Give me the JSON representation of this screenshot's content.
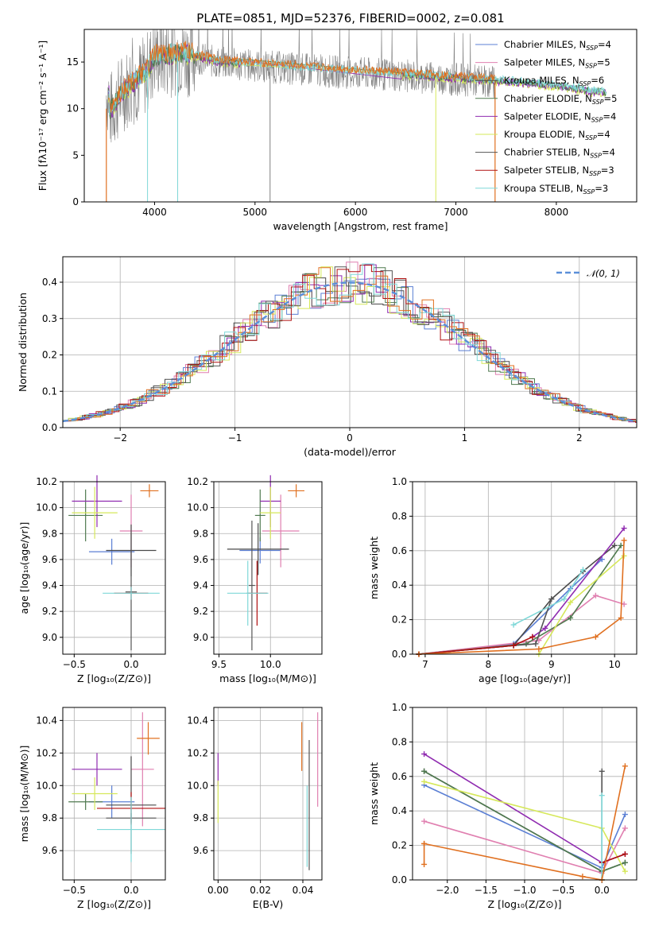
{
  "title": "PLATE=0851, MJD=52376, FIBERID=0002, z=0.081",
  "colors": {
    "Chabrier MILES": "#5b7fd4",
    "Salpeter MILES": "#e07fb0",
    "Kroupa MILES": "#4a4a4a",
    "Chabrier ELODIE": "#4f7a4f",
    "Salpeter ELODIE": "#8f2bb0",
    "Kroupa ELODIE": "#d6e85a",
    "Chabrier STELIB": "#555555",
    "Salpeter STELIB": "#b01010",
    "Kroupa STELIB": "#7fd8d8",
    "orange": "#e07020",
    "data": "#808080",
    "normal": "#5b8fd9"
  },
  "chart_data": [
    {
      "type": "line",
      "title": "PLATE=0851, MJD=52376, FIBERID=0002, z=0.081",
      "xlabel": "wavelength [Angstrom, rest frame]",
      "ylabel": "Flux [fλ10⁻¹⁷ erg cm⁻² s⁻¹ A⁻¹]",
      "xlim": [
        3300,
        8800
      ],
      "ylim": [
        0,
        18.5
      ],
      "xticks": [
        4000,
        5000,
        6000,
        7000,
        8000
      ],
      "yticks": [
        0,
        5,
        10,
        15
      ],
      "grid": false,
      "legend": "top-right",
      "legend_entries": [
        {
          "name": "Chabrier MILES",
          "nssp": "4"
        },
        {
          "name": "Salpeter MILES",
          "nssp": "5"
        },
        {
          "name": "Kroupa MILES",
          "nssp": "6"
        },
        {
          "name": "Chabrier ELODIE",
          "nssp": "5"
        },
        {
          "name": "Salpeter ELODIE",
          "nssp": "4"
        },
        {
          "name": "Kroupa ELODIE",
          "nssp": "4"
        },
        {
          "name": "Chabrier STELIB",
          "nssp": "4"
        },
        {
          "name": "Salpeter STELIB",
          "nssp": "3"
        },
        {
          "name": "Kroupa STELIB",
          "nssp": "3"
        }
      ],
      "legend_suffix": "N",
      "legend_sub": "SSP",
      "model_continuum": [
        [
          3550,
          9.5
        ],
        [
          3700,
          12.0
        ],
        [
          3900,
          13.5
        ],
        [
          4000,
          15.5
        ],
        [
          4300,
          15.8
        ],
        [
          4600,
          15.0
        ],
        [
          5000,
          14.6
        ],
        [
          5500,
          14.2
        ],
        [
          6000,
          13.8
        ],
        [
          6500,
          13.5
        ],
        [
          6800,
          13.3
        ],
        [
          7200,
          13.0
        ],
        [
          7600,
          12.7
        ],
        [
          8000,
          12.3
        ],
        [
          8500,
          11.5
        ]
      ],
      "data_range": [
        3520,
        7390
      ],
      "absorption_spikes": [
        3930,
        4230,
        5150,
        6800
      ]
    },
    {
      "type": "bar",
      "xlabel": "(data-model)/error",
      "ylabel": "Normed distribution",
      "xlim": [
        -2.5,
        2.5
      ],
      "ylim": [
        0,
        0.47
      ],
      "xticks": [
        -2,
        -1,
        0,
        1,
        2
      ],
      "yticks": [
        0.0,
        0.1,
        0.2,
        0.3,
        0.4
      ],
      "grid": true,
      "legend": "top-right",
      "normal_label": "𝒩(0, 1)",
      "bin_width": 0.1
    },
    {
      "type": "scatter",
      "xlabel": "Z [log₁₀(Z/Z⊙)]",
      "ylabel": "age  [log₁₀(age/yr)]",
      "xlim": [
        -0.6,
        0.3
      ],
      "ylim": [
        8.87,
        10.2
      ],
      "xticks": [
        -0.5,
        0.0
      ],
      "yticks": [
        9.0,
        9.2,
        9.4,
        9.6,
        9.8,
        10.0,
        10.2
      ],
      "points": [
        {
          "c": "Chabrier MILES",
          "x": -0.17,
          "xe": 0.2,
          "y": 9.66,
          "ye": 0.1
        },
        {
          "c": "Salpeter MILES",
          "x": 0.0,
          "xe": 0.1,
          "y": 9.82,
          "ye": 0.28
        },
        {
          "c": "Kroupa MILES",
          "x": 0.0,
          "xe": 0.22,
          "y": 9.67,
          "ye": 0.2
        },
        {
          "c": "Chabrier ELODIE",
          "x": -0.4,
          "xe": 0.15,
          "y": 9.94,
          "ye": 0.2
        },
        {
          "c": "Salpeter ELODIE",
          "x": -0.3,
          "xe": 0.22,
          "y": 10.05,
          "ye": 0.2
        },
        {
          "c": "Kroupa ELODIE",
          "x": -0.32,
          "xe": 0.2,
          "y": 9.96,
          "ye": 0.2
        },
        {
          "c": "Chabrier STELIB",
          "x": 0.0,
          "xe": 0.05,
          "y": 9.35,
          "ye": 0.45
        },
        {
          "c": "Salpeter STELIB",
          "x": 0.0,
          "xe": 0.15,
          "y": 9.34,
          "ye": 0.05
        },
        {
          "c": "Kroupa STELIB",
          "x": 0.0,
          "xe": 0.25,
          "y": 9.34,
          "ye": 0.05
        },
        {
          "c": "orange",
          "x": 0.16,
          "xe": 0.08,
          "y": 10.13,
          "ye": 0.05
        }
      ]
    },
    {
      "type": "scatter",
      "xlabel": "mass [log₁₀(M/M⊙)]",
      "xlim": [
        9.45,
        10.5
      ],
      "ylim": [
        8.87,
        10.2
      ],
      "xticks": [
        9.5,
        10.0
      ],
      "yticks": [
        9.0,
        9.2,
        9.4,
        9.6,
        9.8,
        10.0,
        10.2
      ],
      "points": [
        {
          "c": "Chabrier MILES",
          "x": 9.9,
          "xe": 0.2,
          "y": 9.67,
          "ye": 0.1
        },
        {
          "c": "Salpeter MILES",
          "x": 10.1,
          "xe": 0.18,
          "y": 9.82,
          "ye": 0.28
        },
        {
          "c": "Kroupa MILES",
          "x": 9.88,
          "xe": 0.3,
          "y": 9.68,
          "ye": 0.2
        },
        {
          "c": "Chabrier ELODIE",
          "x": 9.9,
          "xe": 0.05,
          "y": 9.94,
          "ye": 0.2
        },
        {
          "c": "Salpeter ELODIE",
          "x": 10.0,
          "xe": 0.1,
          "y": 10.05,
          "ye": 0.2
        },
        {
          "c": "Kroupa ELODIE",
          "x": 10.0,
          "xe": 0.1,
          "y": 9.96,
          "ye": 0.2
        },
        {
          "c": "Chabrier STELIB",
          "x": 9.82,
          "xe": 0.03,
          "y": 9.4,
          "ye": 0.5
        },
        {
          "c": "Salpeter STELIB",
          "x": 9.87,
          "xe": 0.1,
          "y": 9.34,
          "ye": 0.25
        },
        {
          "c": "Kroupa STELIB",
          "x": 9.78,
          "xe": 0.2,
          "y": 9.34,
          "ye": 0.25
        },
        {
          "c": "orange",
          "x": 10.25,
          "xe": 0.08,
          "y": 10.13,
          "ye": 0.05
        }
      ]
    },
    {
      "type": "line",
      "xlabel": "age  [log₁₀(age/yr)]",
      "ylabel": "mass weight",
      "xlim": [
        6.8,
        10.35
      ],
      "ylim": [
        0,
        1.0
      ],
      "xticks": [
        7,
        8,
        9,
        10
      ],
      "yticks": [
        0.0,
        0.2,
        0.4,
        0.6,
        0.8,
        1.0
      ],
      "grid": true,
      "series": [
        {
          "c": "Chabrier MILES",
          "x": [
            6.9,
            8.4,
            9.3,
            9.8
          ],
          "y": [
            0.0,
            0.06,
            0.38,
            0.55
          ]
        },
        {
          "c": "Salpeter MILES",
          "x": [
            6.9,
            8.8,
            9.7,
            10.15
          ],
          "y": [
            0.0,
            0.08,
            0.34,
            0.29
          ]
        },
        {
          "c": "Kroupa MILES",
          "x": [
            6.9,
            8.4,
            9.0,
            9.5,
            10.0
          ],
          "y": [
            0.0,
            0.05,
            0.32,
            0.48,
            0.63
          ]
        },
        {
          "c": "Chabrier ELODIE",
          "x": [
            6.9,
            8.6,
            9.3,
            10.1
          ],
          "y": [
            0.0,
            0.06,
            0.21,
            0.63
          ]
        },
        {
          "c": "Salpeter ELODIE",
          "x": [
            8.7,
            8.9,
            10.15
          ],
          "y": [
            0.1,
            0.15,
            0.73
          ]
        },
        {
          "c": "Kroupa ELODIE",
          "x": [
            8.8,
            9.3,
            10.15
          ],
          "y": [
            0.0,
            0.3,
            0.57
          ]
        },
        {
          "c": "Chabrier STELIB",
          "x": [
            6.9,
            8.4,
            8.75,
            9.0
          ],
          "y": [
            0.0,
            0.05,
            0.06,
            0.32
          ]
        },
        {
          "c": "Salpeter STELIB",
          "x": [
            6.9,
            8.4,
            8.7
          ],
          "y": [
            0.0,
            0.05,
            0.1
          ]
        },
        {
          "c": "Kroupa STELIB",
          "x": [
            8.4,
            9.2,
            9.5
          ],
          "y": [
            0.17,
            0.32,
            0.49
          ]
        },
        {
          "c": "orange",
          "x": [
            6.9,
            8.8,
            9.7,
            10.1,
            10.15
          ],
          "y": [
            0.0,
            0.03,
            0.1,
            0.21,
            0.66
          ]
        }
      ]
    },
    {
      "type": "scatter",
      "xlabel": "Z [log₁₀(Z/Z⊙)]",
      "ylabel": "mass [log₁₀(M/M⊙)]",
      "xlim": [
        -0.6,
        0.3
      ],
      "ylim": [
        9.42,
        10.48
      ],
      "xticks": [
        -0.5,
        0.0
      ],
      "yticks": [
        9.6,
        9.8,
        10.0,
        10.2,
        10.4
      ],
      "points": [
        {
          "c": "Chabrier MILES",
          "x": -0.17,
          "xe": 0.2,
          "y": 9.9,
          "ye": 0.1
        },
        {
          "c": "Salpeter MILES",
          "x": 0.1,
          "xe": 0.1,
          "y": 10.1,
          "ye": 0.35
        },
        {
          "c": "Kroupa MILES",
          "x": 0.0,
          "xe": 0.22,
          "y": 9.88,
          "ye": 0.3
        },
        {
          "c": "Chabrier ELODIE",
          "x": -0.4,
          "xe": 0.15,
          "y": 9.9,
          "ye": 0.05
        },
        {
          "c": "Salpeter ELODIE",
          "x": -0.3,
          "xe": 0.22,
          "y": 10.1,
          "ye": 0.1
        },
        {
          "c": "Kroupa ELODIE",
          "x": -0.32,
          "xe": 0.2,
          "y": 9.95,
          "ye": 0.1
        },
        {
          "c": "Chabrier STELIB",
          "x": 0.0,
          "xe": 0.22,
          "y": 9.8,
          "ye": 0.03
        },
        {
          "c": "Salpeter STELIB",
          "x": 0.0,
          "xe": 0.3,
          "y": 9.86,
          "ye": 0.1
        },
        {
          "c": "Kroupa STELIB",
          "x": 0.0,
          "xe": 0.3,
          "y": 9.73,
          "ye": 0.2
        },
        {
          "c": "orange",
          "x": 0.15,
          "xe": 0.1,
          "y": 10.29,
          "ye": 0.1
        }
      ]
    },
    {
      "type": "scatter",
      "xlabel": "E(B-V)",
      "xlim": [
        -0.002,
        0.049
      ],
      "ylim": [
        9.42,
        10.48
      ],
      "xticks": [
        0.0,
        0.02,
        0.04
      ],
      "yticks": [
        9.6,
        9.8,
        10.0,
        10.2,
        10.4
      ],
      "points": [
        {
          "c": "Salpeter ELODIE",
          "x": 0.0,
          "y": 10.1,
          "ye": 0.1
        },
        {
          "c": "Kroupa ELODIE",
          "x": 0.0,
          "y": 9.9,
          "ye": 0.13
        },
        {
          "c": "orange",
          "x": 0.0395,
          "y": 10.24,
          "ye": 0.15
        },
        {
          "c": "Chabrier STELIB",
          "x": 0.043,
          "y": 9.88,
          "ye": 0.4
        },
        {
          "c": "Kroupa STELIB",
          "x": 0.042,
          "y": 9.75,
          "ye": 0.25
        },
        {
          "c": "Salpeter MILES",
          "x": 0.047,
          "y": 10.16,
          "ye": 0.29
        }
      ]
    },
    {
      "type": "line",
      "xlabel": "Z [log₁₀(Z/Z⊙)]",
      "ylabel": "mass weight",
      "xlim": [
        -2.45,
        0.45
      ],
      "ylim": [
        0,
        1.0
      ],
      "xticks": [
        -2.0,
        -1.5,
        -1.0,
        -0.5,
        0.0
      ],
      "yticks": [
        0.0,
        0.2,
        0.4,
        0.6,
        0.8,
        1.0
      ],
      "grid": true,
      "series": [
        {
          "c": "Chabrier MILES",
          "x": [
            -2.3,
            0.0,
            0.3
          ],
          "y": [
            0.55,
            0.07,
            0.38
          ]
        },
        {
          "c": "Salpeter MILES",
          "x": [
            -2.3,
            0.0,
            0.3
          ],
          "y": [
            0.34,
            0.04,
            0.3
          ]
        },
        {
          "c": "Kroupa MILES",
          "x": [
            -2.3,
            0.0,
            0.3
          ],
          "y": [
            0.63,
            0.05,
            0.1
          ]
        },
        {
          "c": "Chabrier ELODIE",
          "x": [
            -2.3,
            0.0,
            0.3
          ],
          "y": [
            0.63,
            0.05,
            0.1
          ]
        },
        {
          "c": "Salpeter ELODIE",
          "x": [
            -2.3,
            0.0,
            0.3
          ],
          "y": [
            0.73,
            0.1,
            0.15
          ]
        },
        {
          "c": "Kroupa ELODIE",
          "x": [
            -2.3,
            0.0,
            0.3
          ],
          "y": [
            0.57,
            0.3,
            0.05
          ]
        },
        {
          "c": "Chabrier STELIB",
          "x": [
            0.0,
            0.0
          ],
          "y": [
            0.0,
            0.63
          ]
        },
        {
          "c": "Salpeter STELIB",
          "x": [
            0.0,
            0.3
          ],
          "y": [
            0.1,
            0.15
          ]
        },
        {
          "c": "Kroupa STELIB",
          "x": [
            0.0,
            0.0
          ],
          "y": [
            0.0,
            0.49
          ]
        },
        {
          "c": "orange",
          "x": [
            -2.3,
            -0.25,
            0.0,
            0.3
          ],
          "y": [
            0.21,
            0.02,
            0.0,
            0.66
          ]
        },
        {
          "c": "orange",
          "x": [
            -2.3,
            -2.3
          ],
          "y": [
            0.09,
            0.21
          ]
        }
      ]
    }
  ]
}
